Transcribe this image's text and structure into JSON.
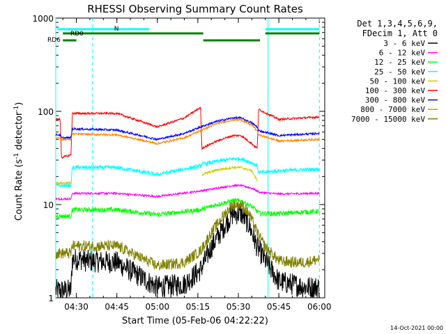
{
  "chart_data": {
    "type": "line",
    "title": "RHESSI Observing Summary Count Rates",
    "xlabel": "Start Time (05-Feb-06 04:22:22)",
    "ylabel": "Count Rate (s⁻¹ detector⁻¹)",
    "ylabel_parts": [
      "Count Rate (s",
      "-1",
      " detector",
      "-1",
      ")"
    ],
    "y_scale": "log",
    "ylim": [
      1,
      1000
    ],
    "y_ticks": [
      {
        "value": 1,
        "label": "1"
      },
      {
        "value": 10,
        "label": "10"
      },
      {
        "value": 100,
        "label": "100"
      },
      {
        "value": 1000,
        "label": "1000"
      }
    ],
    "xlim": [
      "04:22:22",
      "06:02:00"
    ],
    "x_ticks": [
      {
        "value": "04:30",
        "label": "04:30"
      },
      {
        "value": "04:45",
        "label": "04:45"
      },
      {
        "value": "05:00",
        "label": "05:00"
      },
      {
        "value": "05:15",
        "label": "05:15"
      },
      {
        "value": "05:30",
        "label": "05:30"
      },
      {
        "value": "05:45",
        "label": "05:45"
      },
      {
        "value": "06:00",
        "label": "06:00"
      }
    ],
    "legend_placement": "right",
    "legend_header": [
      "Det 1,3,4,5,6,9,",
      "FDecim 1, Att 0"
    ],
    "series": [
      {
        "name": "3 - 6 keV",
        "color": "#000000",
        "x": [
          "04:22:22",
          "04:28",
          "04:28:30",
          "04:32:30",
          "04:33",
          "04:45",
          "05:00",
          "05:10",
          "05:16",
          "05:20",
          "05:25",
          "05:28",
          "05:31",
          "05:34",
          "05:37",
          "05:40",
          "05:45",
          "05:50",
          "05:55",
          "06:00"
        ],
        "y": [
          1.2,
          1.2,
          2.6,
          2.6,
          2.5,
          2.4,
          1.3,
          1.4,
          2.0,
          3.5,
          6.0,
          8.0,
          8.0,
          6.0,
          3.5,
          2.5,
          1.5,
          1.4,
          1.3,
          1.3
        ]
      },
      {
        "name": "6 - 12 keV",
        "color": "#ff00ff",
        "x": [
          "04:22:22",
          "04:28",
          "04:28:30",
          "04:45",
          "05:00",
          "05:16",
          "05:22",
          "05:28",
          "05:31",
          "05:35",
          "05:38",
          "05:45",
          "06:00"
        ],
        "y": [
          11.5,
          11.5,
          13.2,
          13.2,
          12.2,
          14.0,
          15.0,
          16.0,
          16.0,
          15.0,
          13.5,
          13.0,
          13.2
        ]
      },
      {
        "name": "12 - 25 keV",
        "color": "#00ff00",
        "x": [
          "04:22:22",
          "04:28",
          "04:28:30",
          "04:45",
          "05:00",
          "05:16",
          "05:22",
          "05:28",
          "05:31",
          "05:35",
          "05:38",
          "05:45",
          "06:00"
        ],
        "y": [
          7.5,
          7.5,
          8.8,
          8.8,
          7.8,
          8.8,
          10.0,
          11.0,
          11.0,
          9.5,
          8.0,
          8.0,
          8.5
        ]
      },
      {
        "name": "25 - 50 keV",
        "color": "#00ffff",
        "x": [
          "04:22:22",
          "04:28",
          "04:28:30",
          "04:45",
          "05:00",
          "05:16",
          "05:16:30",
          "05:22",
          "05:28",
          "05:31",
          "05:35",
          "05:37",
          "05:37:30",
          "05:45",
          "06:00"
        ],
        "y": [
          16.0,
          16.0,
          25.0,
          25.0,
          21.0,
          26.0,
          27.0,
          29.0,
          31.0,
          31.0,
          28.0,
          26.0,
          22.0,
          23.0,
          24.0
        ]
      },
      {
        "name": "50 - 100 keV",
        "color": "#cccc00",
        "x": [
          "04:22:22",
          "04:28",
          "04:28:30",
          "05:16",
          "05:16:30",
          "05:22",
          "05:28",
          "05:31",
          "05:35",
          "05:37",
          "05:37:30",
          "06:00"
        ],
        "y": [
          17.0,
          17.0,
          null,
          null,
          21.0,
          23.5,
          25.0,
          25.0,
          23.0,
          18.0,
          null,
          null
        ]
      },
      {
        "name": "100 - 300 keV",
        "color": "#ff0000",
        "x": [
          "04:22:22",
          "04:24",
          "04:24:30",
          "04:28",
          "04:28:30",
          "04:45",
          "05:00",
          "05:10",
          "05:16",
          "05:16:30",
          "05:22",
          "05:28",
          "05:31",
          "05:35",
          "05:37",
          "05:37:30",
          "05:45",
          "06:00"
        ],
        "y": [
          82,
          82,
          32,
          34,
          95,
          95,
          68,
          85,
          110,
          40,
          48,
          55,
          55,
          45,
          40,
          105,
          82,
          87
        ]
      },
      {
        "name": "300 - 800 keV",
        "color": "#0000ff",
        "x": [
          "04:22:22",
          "04:24",
          "04:24:30",
          "04:28",
          "04:28:30",
          "04:45",
          "05:00",
          "05:10",
          "05:16",
          "05:22",
          "05:28",
          "05:31",
          "05:35",
          "05:37",
          "05:37:30",
          "05:45",
          "06:00"
        ],
        "y": [
          56,
          56,
          52,
          52,
          65,
          63,
          50,
          58,
          68,
          78,
          85,
          85,
          75,
          68,
          62,
          55,
          58
        ]
      },
      {
        "name": "800 - 7000 keV",
        "color": "#ff8800",
        "x": [
          "04:22:22",
          "04:24",
          "04:24:30",
          "04:28",
          "04:28:30",
          "04:45",
          "05:00",
          "05:10",
          "05:16",
          "05:22",
          "05:28",
          "05:31",
          "05:35",
          "05:37",
          "05:37:30",
          "05:45",
          "06:00"
        ],
        "y": [
          52,
          52,
          50,
          50,
          57,
          56,
          45,
          52,
          62,
          74,
          81,
          81,
          71,
          62,
          56,
          48,
          50
        ]
      },
      {
        "name": "7000 - 15000 keV",
        "color": "#808000",
        "x": [
          "04:22:22",
          "04:28",
          "04:28:30",
          "04:45",
          "05:00",
          "05:10",
          "05:16",
          "05:20",
          "05:25",
          "05:28",
          "05:31",
          "05:34",
          "05:37",
          "05:40",
          "05:45",
          "05:50",
          "05:55",
          "06:00"
        ],
        "y": [
          3.0,
          3.0,
          3.6,
          3.6,
          2.2,
          2.4,
          3.2,
          5.0,
          8.0,
          10.0,
          10.0,
          8.0,
          5.0,
          3.5,
          2.5,
          2.4,
          2.4,
          2.6
        ]
      }
    ],
    "annotations": {
      "N": {
        "label": "N",
        "color": "#00ffff",
        "x_start": "04:23",
        "x_end": "04:57"
      },
      "RD0": {
        "label": "RD0",
        "color": "#008000",
        "segments": [
          [
            "04:25",
            "05:17"
          ],
          [
            "05:40",
            "06:00"
          ]
        ]
      },
      "RD0_upper": {
        "color": "#00ffff",
        "segments": [
          [
            "05:40",
            "06:00"
          ]
        ]
      },
      "RD6": {
        "label": "RD6",
        "color": "#008000",
        "segments": [
          [
            "04:25",
            "04:30"
          ],
          [
            "05:17",
            "05:38"
          ]
        ]
      },
      "boundaries_solid": [
        "04:22:22",
        "05:41"
      ],
      "boundaries_dashed": [
        "04:36",
        "06:00"
      ]
    }
  },
  "footer": {
    "timestamp": "14-Oct-2021 00:00"
  }
}
